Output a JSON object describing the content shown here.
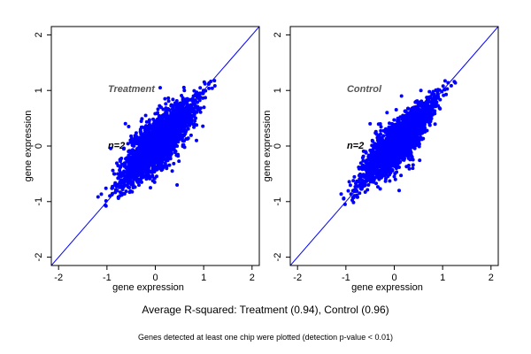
{
  "chart_data": [
    {
      "type": "scatter",
      "panel_label": "Treatment",
      "n_label": "n=2",
      "xlabel": "gene expression",
      "ylabel": "gene expression",
      "xlim": [
        -2.15,
        2.15
      ],
      "ylim": [
        -2.15,
        2.15
      ],
      "xticks": [
        -2,
        -1,
        0,
        1,
        2
      ],
      "yticks": [
        -2,
        -1,
        0,
        1,
        2
      ],
      "reference_line": "y = x",
      "point_color": "#0000ff",
      "line_color": "#0000ff",
      "cloud": {
        "x_range": [
          -1.05,
          1.2
        ],
        "y_range": [
          -1.12,
          1.22
        ],
        "spread": 0.2
      },
      "outliers": [
        [
          -0.4,
          0.05
        ],
        [
          -0.2,
          0.55
        ],
        [
          0.2,
          0.85
        ],
        [
          0.35,
          -0.45
        ],
        [
          0.45,
          -0.7
        ],
        [
          0.6,
          1.0
        ],
        [
          -0.1,
          -0.75
        ],
        [
          0.85,
          0.1
        ],
        [
          -0.55,
          0.35
        ],
        [
          0.1,
          1.05
        ]
      ]
    },
    {
      "type": "scatter",
      "panel_label": "Control",
      "n_label": "n=2",
      "xlabel": "gene expression",
      "ylabel": "gene expression",
      "xlim": [
        -2.15,
        2.15
      ],
      "ylim": [
        -2.15,
        2.15
      ],
      "xticks": [
        -2,
        -1,
        0,
        1,
        2
      ],
      "yticks": [
        -2,
        -1,
        0,
        1,
        2
      ],
      "reference_line": "y = x",
      "point_color": "#0000ff",
      "line_color": "#0000ff",
      "cloud": {
        "x_range": [
          -1.05,
          1.2
        ],
        "y_range": [
          -1.05,
          1.22
        ],
        "spread": 0.17
      },
      "outliers": [
        [
          -0.35,
          0.15
        ],
        [
          -0.15,
          0.6
        ],
        [
          0.15,
          0.9
        ],
        [
          0.3,
          -0.35
        ],
        [
          0.0,
          -0.55
        ],
        [
          0.55,
          1.0
        ],
        [
          -0.5,
          0.4
        ],
        [
          0.1,
          -0.8
        ]
      ]
    }
  ],
  "summary_text": "Average R-squared: Treatment (0.94), Control (0.96)",
  "footnote_text": "Genes detected at least one chip were plotted (detection p-value < 0.01)"
}
